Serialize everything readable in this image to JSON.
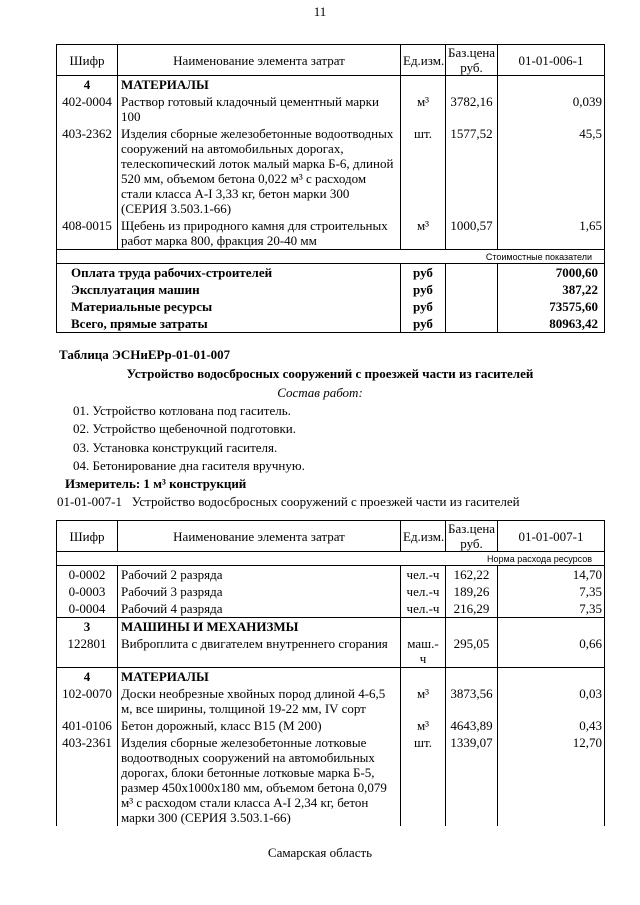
{
  "page_number": "11",
  "table1": {
    "headers": [
      "Шифр",
      "Наименование элемента затрат",
      "Ед.изм.",
      "Баз.цена руб.",
      "01-01-006-1"
    ],
    "rows": [
      {
        "type": "section",
        "code": "4",
        "name": "МАТЕРИАЛЫ"
      },
      {
        "type": "item",
        "code": "402-0004",
        "name": "Раствор готовый кладочный цементный марки 100",
        "unit": "м³",
        "price": "3782,16",
        "qty": "0,039"
      },
      {
        "type": "item",
        "code": "403-2362",
        "name": "Изделия сборные железобетонные водоотводных сооружений на автомобильных дорогах, телескопический лоток малый марка Б-6, длиной 520 мм, объемом бетона 0,022 м³ с расходом стали класса А-I 3,33 кг, бетон марки 300 (СЕРИЯ 3.503.1-66)",
        "unit": "шт.",
        "price": "1577,52",
        "qty": "45,5"
      },
      {
        "type": "item",
        "code": "408-0015",
        "name": "Щебень из природного камня для строительных работ марка 800, фракция 20-40 мм",
        "unit": "м³",
        "price": "1000,57",
        "qty": "1,65"
      },
      {
        "type": "caption",
        "text": "Стоимостные показатели"
      },
      {
        "type": "total",
        "name": "Оплата труда рабочих-строителей",
        "unit": "руб",
        "qty": "7000,60"
      },
      {
        "type": "total",
        "name": "Эксплуатация машин",
        "unit": "руб",
        "qty": "387,22"
      },
      {
        "type": "total",
        "name": "Материальные ресурсы",
        "unit": "руб",
        "qty": "73575,60"
      },
      {
        "type": "total",
        "name": "Всего, прямые затраты",
        "unit": "руб",
        "qty": "80963,42"
      }
    ]
  },
  "section": {
    "table_label": "Таблица  ЭСНиЕРр-01-01-007",
    "title": "Устройство водосбросных сооружений с проезжей части из гасителей",
    "works_heading": "Состав работ:",
    "works": [
      "01. Устройство котлована под гаситель.",
      "02. Устройство щебеночной подготовки.",
      "03. Установка конструкций гасителя.",
      "04. Бетонирование дна гасителя вручную."
    ],
    "measure": "Измеритель: 1 м³ конструкций",
    "norm_code": "01-01-007-1",
    "norm_name": "Устройство водосбросных сооружений с проезжей части из гасителей"
  },
  "table2": {
    "headers": [
      "Шифр",
      "Наименование элемента затрат",
      "Ед.изм.",
      "Баз.цена руб.",
      "01-01-007-1"
    ],
    "rows": [
      {
        "type": "caption",
        "text": "Норма расхода ресурсов"
      },
      {
        "type": "item",
        "code": "0-0002",
        "name": "Рабочий 2 разряда",
        "unit": "чел.-ч",
        "price": "162,22",
        "qty": "14,70"
      },
      {
        "type": "item",
        "code": "0-0003",
        "name": "Рабочий 3 разряда",
        "unit": "чел.-ч",
        "price": "189,26",
        "qty": "7,35"
      },
      {
        "type": "item",
        "code": "0-0004",
        "name": "Рабочий 4 разряда",
        "unit": "чел.-ч",
        "price": "216,29",
        "qty": "7,35"
      },
      {
        "type": "section",
        "code": "3",
        "name": "МАШИНЫ И МЕХАНИЗМЫ"
      },
      {
        "type": "item",
        "code": "122801",
        "name": "Виброплита с двигателем внутреннего сгорания",
        "unit": "маш.-ч",
        "price": "295,05",
        "qty": "0,66"
      },
      {
        "type": "section",
        "code": "4",
        "name": "МАТЕРИАЛЫ"
      },
      {
        "type": "item",
        "code": "102-0070",
        "name": "Доски необрезные хвойных пород длиной 4-6,5 м, все ширины, толщиной 19-22 мм, IV сорт",
        "unit": "м³",
        "price": "3873,56",
        "qty": "0,03"
      },
      {
        "type": "item",
        "code": "401-0106",
        "name": "Бетон дорожный, класс В15 (М 200)",
        "unit": "м³",
        "price": "4643,89",
        "qty": "0,43"
      },
      {
        "type": "item",
        "code": "403-2361",
        "name": "Изделия сборные железобетонные лотковые водоотводных сооружений на автомобильных дорогах, блоки бетонные лотковые марка Б-5, размер 450х1000х180 мм, объемом бетона 0,079 м³ с расходом стали класса А-I 2,34 кг, бетон марки 300 (СЕРИЯ 3.503.1-66)",
        "unit": "шт.",
        "price": "1339,07",
        "qty": "12,70"
      }
    ]
  },
  "footer": "Самарская область"
}
